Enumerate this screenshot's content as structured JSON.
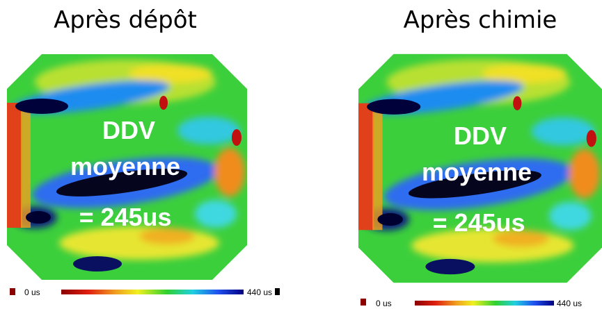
{
  "panels": [
    {
      "title": "Après dépôt",
      "overlay": [
        "DDV",
        "moyenne",
        "= 245us"
      ],
      "scale_min": "0 us",
      "scale_max": "440 us"
    },
    {
      "title": "Après chimie",
      "overlay": [
        "DDV",
        "moyenne",
        "= 245us"
      ],
      "scale_min": "0 us",
      "scale_max": "440 us"
    }
  ]
}
